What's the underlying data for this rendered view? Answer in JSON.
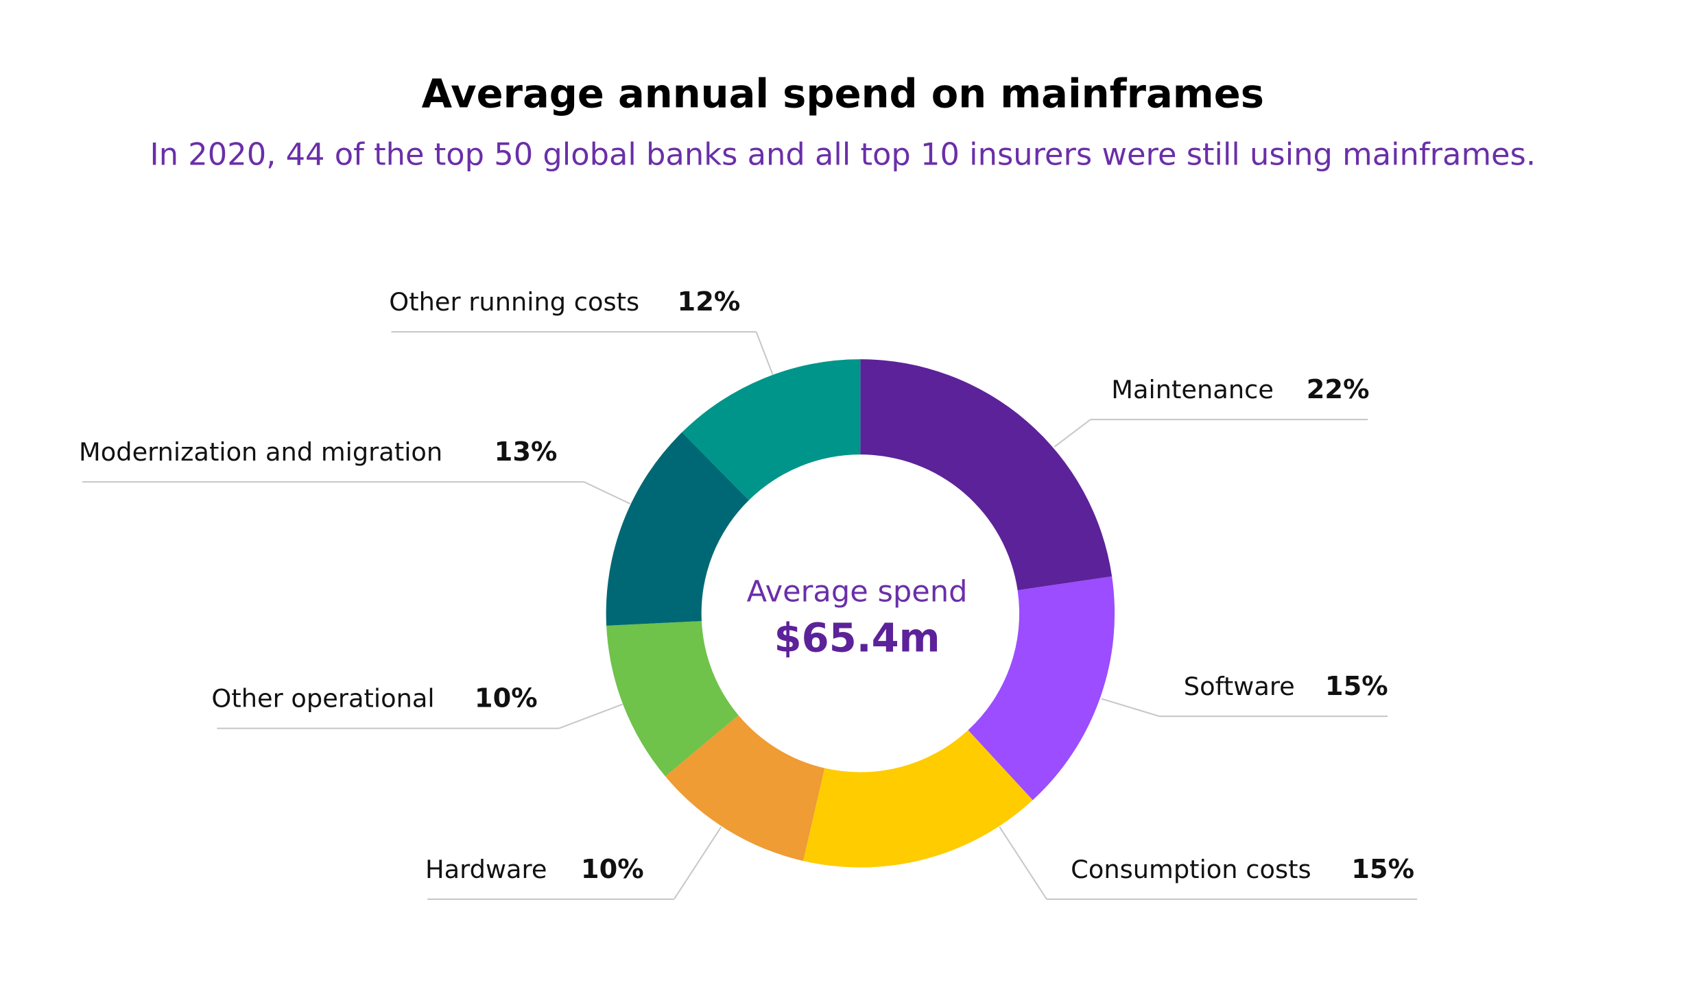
{
  "chart_data": {
    "type": "donut",
    "title": "Average annual spend on mainframes",
    "subtitle": "In 2020, 44 of the top 50 global banks and all top 10 insurers were still using mainframes.",
    "center_label": "Average spend",
    "center_value": "$65.4m",
    "categories": [
      "Maintenance",
      "Software",
      "Consumption costs",
      "Hardware",
      "Other operational",
      "Modernization and migration",
      "Other running costs"
    ],
    "values": [
      22,
      15,
      15,
      10,
      10,
      13,
      12
    ],
    "value_labels": [
      "22%",
      "15%",
      "15%",
      "10%",
      "10%",
      "13%",
      "12%"
    ],
    "colors": [
      "#5c2299",
      "#9b4dff",
      "#ffcc00",
      "#ee9c33",
      "#6fc24a",
      "#006874",
      "#00958a"
    ]
  }
}
